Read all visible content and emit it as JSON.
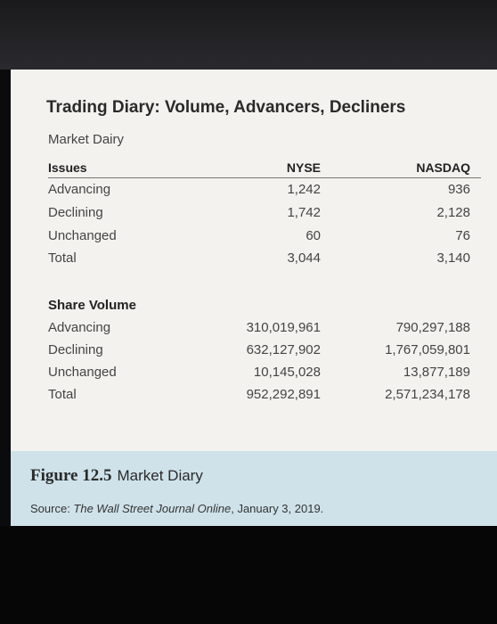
{
  "table": {
    "title": "Trading Diary: Volume, Advancers, Decliners",
    "subtitle": "Market Dairy",
    "columns": [
      "Issues",
      "NYSE",
      "NASDAQ"
    ],
    "issues": [
      {
        "label": "Advancing",
        "nyse": "1,242",
        "nasdaq": "936"
      },
      {
        "label": "Declining",
        "nyse": "1,742",
        "nasdaq": "2,128"
      },
      {
        "label": "Unchanged",
        "nyse": "60",
        "nasdaq": "76"
      },
      {
        "label": "Total",
        "nyse": "3,044",
        "nasdaq": "3,140"
      }
    ],
    "share_volume_header": "Share Volume",
    "share_volume": [
      {
        "label": "Advancing",
        "nyse": "310,019,961",
        "nasdaq": "790,297,188"
      },
      {
        "label": "Declining",
        "nyse": "632,127,902",
        "nasdaq": "1,767,059,801"
      },
      {
        "label": "Unchanged",
        "nyse": "10,145,028",
        "nasdaq": "13,877,189"
      },
      {
        "label": "Total",
        "nyse": "952,292,891",
        "nasdaq": "2,571,234,178"
      }
    ]
  },
  "caption": {
    "figure_number": "Figure 12.5",
    "figure_title": "Market Diary",
    "source_prefix": "Source: ",
    "source_title": "The Wall Street Journal Online",
    "source_suffix": ", January 3, 2019."
  }
}
